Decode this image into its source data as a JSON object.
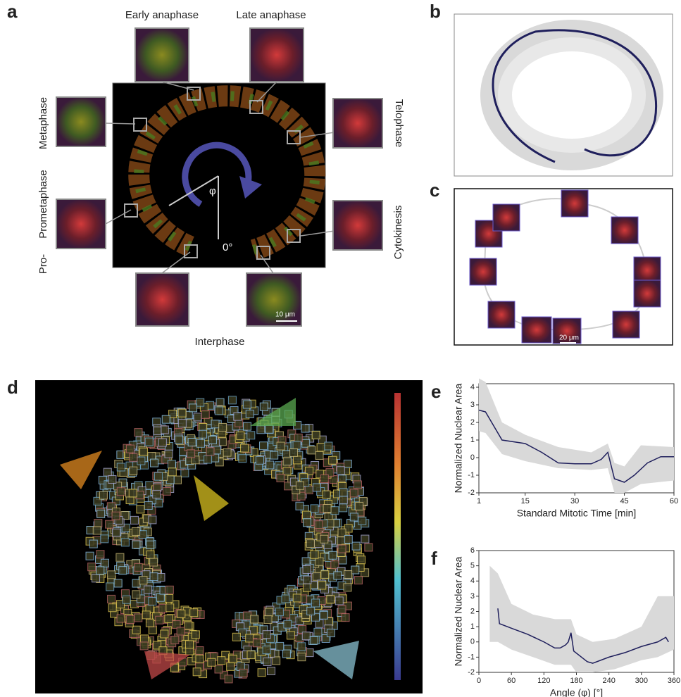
{
  "panel_letters": [
    "a",
    "b",
    "c",
    "d",
    "e",
    "f"
  ],
  "panel_a": {
    "early_anaphase": "Early anaphase",
    "late_anaphase": "Late anaphase",
    "metaphase": "Metaphase",
    "telophase": "Telophase",
    "pro": "Pro-",
    "prometaphase": "Prometaphase",
    "cytokinesis": "Cytokinesis",
    "interphase": "Interphase",
    "angle": "φ",
    "zero": "0°",
    "scale_bar": "10 μm"
  },
  "panel_c": {
    "scale_bar": "20 μm"
  },
  "chart_data": [
    {
      "type": "line",
      "ylabel": "Normalized Nuclear Area",
      "xlabel": "Standard Mitotic Time [min]",
      "xlim": [
        1,
        60
      ],
      "ylim": [
        -2,
        4.2
      ],
      "xticks": [
        1,
        15,
        30,
        45,
        60
      ],
      "yticks": [
        -2,
        -1,
        0,
        1,
        2,
        3,
        4
      ],
      "color": "#1f1f5c",
      "band_color": "#d9d9d9",
      "x": [
        1,
        3,
        8,
        15,
        20,
        25,
        30,
        35,
        38,
        40,
        42,
        45,
        48,
        52,
        56,
        60
      ],
      "values": [
        2.7,
        2.6,
        1.0,
        0.8,
        0.3,
        -0.3,
        -0.35,
        -0.35,
        -0.1,
        0.3,
        -1.2,
        -1.4,
        -1.0,
        -0.3,
        0.05,
        0.05
      ],
      "band_x": [
        1,
        3,
        8,
        15,
        25,
        35,
        40,
        42,
        45,
        50,
        60
      ],
      "band_upper": [
        4.5,
        4.3,
        2.0,
        1.3,
        0.6,
        0.3,
        0.8,
        -0.3,
        -0.5,
        0.7,
        0.6
      ],
      "band_lower": [
        1.5,
        1.4,
        0.2,
        -0.2,
        -0.6,
        -0.7,
        -0.6,
        -2.0,
        -2.0,
        -1.5,
        -1.3
      ]
    },
    {
      "type": "line",
      "ylabel": "Normalized Nuclear Area",
      "xlabel": "Angle (φ) [°]",
      "xlim": [
        0,
        360
      ],
      "ylim": [
        -2,
        6
      ],
      "xticks": [
        0,
        60,
        120,
        180,
        240,
        300,
        360
      ],
      "yticks": [
        -2,
        -1,
        0,
        1,
        2,
        3,
        4,
        5,
        6
      ],
      "color": "#1f1f5c",
      "band_color": "#d9d9d9",
      "x": [
        35,
        38,
        60,
        90,
        120,
        140,
        150,
        160,
        165,
        170,
        175,
        200,
        210,
        240,
        270,
        300,
        330,
        345,
        350
      ],
      "values": [
        2.2,
        1.2,
        0.9,
        0.5,
        0.0,
        -0.4,
        -0.4,
        -0.2,
        0.0,
        0.6,
        -0.6,
        -1.3,
        -1.4,
        -1.0,
        -0.7,
        -0.3,
        0.0,
        0.3,
        0.0
      ],
      "band_x": [
        20,
        35,
        60,
        100,
        140,
        170,
        180,
        210,
        250,
        300,
        330,
        360
      ],
      "band_upper": [
        5.0,
        4.5,
        2.5,
        1.8,
        1.5,
        1.5,
        0.5,
        0.0,
        0.2,
        1.0,
        3.0,
        3.0
      ],
      "band_lower": [
        0.0,
        0.0,
        -0.5,
        -1.0,
        -1.5,
        -1.5,
        -2.0,
        -2.0,
        -1.8,
        -1.2,
        -1.0,
        -0.5
      ]
    }
  ]
}
